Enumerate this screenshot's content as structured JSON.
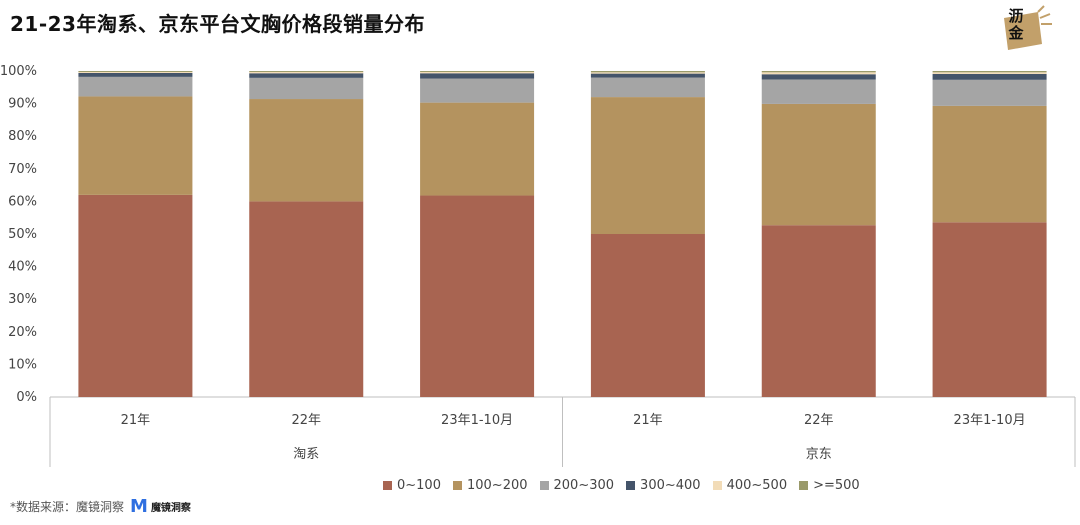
{
  "title": "21-23年淘系、京东平台文胸价格段销量分布",
  "logo": {
    "text": "沥金"
  },
  "source": {
    "label": "*数据来源：魔镜洞察",
    "brand_name": "魔镜洞察",
    "brand_mark": "M"
  },
  "colors": {
    "0~100": "#a86451",
    "100~200": "#b4935f",
    "200~300": "#a5a5a5",
    "300~400": "#44546a",
    "400~500": "#f2dcb8",
    ">=500": "#9a9a6a"
  },
  "chart_data": {
    "type": "bar",
    "stacked": true,
    "percent": true,
    "title": "21-23年淘系、京东平台文胸价格段销量分布",
    "y_ticks": [
      "0%",
      "10%",
      "20%",
      "30%",
      "40%",
      "50%",
      "60%",
      "70%",
      "80%",
      "90%",
      "100%"
    ],
    "ylim": [
      0,
      100
    ],
    "groups": [
      {
        "name": "淘系",
        "categories": [
          "21年",
          "22年",
          "23年1-10月"
        ]
      },
      {
        "name": "京东",
        "categories": [
          "21年",
          "22年",
          "23年1-10月"
        ]
      }
    ],
    "categories": [
      "21年",
      "22年",
      "23年1-10月",
      "21年",
      "22年",
      "23年1-10月"
    ],
    "legend_position": "bottom",
    "series": [
      {
        "name": "0~100",
        "values": [
          62.0,
          60.0,
          61.8,
          50.0,
          52.7,
          53.6
        ]
      },
      {
        "name": "100~200",
        "values": [
          30.2,
          31.4,
          28.5,
          42.0,
          37.2,
          35.7
        ]
      },
      {
        "name": "200~300",
        "values": [
          6.0,
          6.5,
          7.4,
          6.0,
          7.5,
          8.0
        ]
      },
      {
        "name": "300~400",
        "values": [
          1.2,
          1.4,
          1.6,
          1.2,
          1.6,
          1.8
        ]
      },
      {
        "name": "400~500",
        "values": [
          0.3,
          0.4,
          0.4,
          0.4,
          0.6,
          0.5
        ]
      },
      {
        "name": ">=500",
        "values": [
          0.3,
          0.3,
          0.3,
          0.4,
          0.4,
          0.4
        ]
      }
    ]
  }
}
